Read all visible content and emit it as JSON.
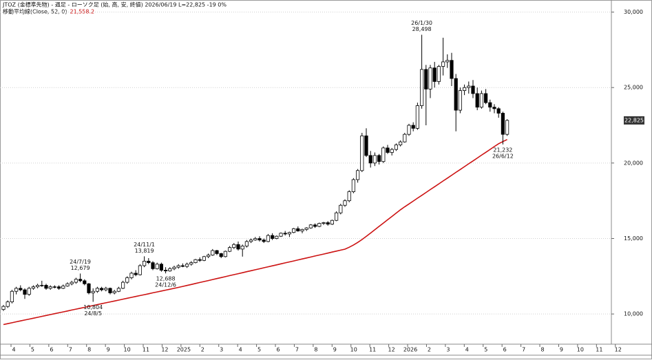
{
  "chart_data": {
    "type": "candlestick",
    "title": "JTOZ (金標準先物) - 週足 - ローソク足 (始, 高, 安, 終値)  2026/06/19 L=22,825 -19  0%",
    "ylim": [
      8000,
      30800
    ],
    "yticks": [
      {
        "value": 10000,
        "label": "10,000"
      },
      {
        "value": 15000,
        "label": "15,000"
      },
      {
        "value": 20000,
        "label": "20,000"
      },
      {
        "value": 25000,
        "label": "25,000"
      },
      {
        "value": 30000,
        "label": "30,000"
      }
    ],
    "grid": true,
    "x_axis_labels": [
      "4",
      "5",
      "6",
      "7",
      "8",
      "9",
      "10",
      "11",
      "12",
      "2025",
      "2",
      "3",
      "4",
      "5",
      "6",
      "7",
      "8",
      "9",
      "10",
      "11",
      "12",
      "2026",
      "2",
      "3",
      "4",
      "5",
      "6",
      "7",
      "8",
      "9",
      "10",
      "11",
      "12"
    ],
    "up_color": "#ffffff",
    "down_color": "#000000",
    "open": [
      10300,
      10500,
      10800,
      11500,
      11700,
      11600,
      11300,
      11700,
      11800,
      11900,
      11900,
      11700,
      11800,
      11800,
      11700,
      11850,
      12000,
      12100,
      12300,
      12200,
      12000,
      11400,
      11500,
      11700,
      11600,
      11700,
      11400,
      11500,
      11700,
      12100,
      12400,
      12700,
      12600,
      13200,
      13500,
      13400,
      13000,
      13300,
      12900,
      12850,
      13000,
      13100,
      13200,
      13150,
      13300,
      13400,
      13600,
      13550,
      13800,
      13900,
      14200,
      14000,
      13800,
      14150,
      14400,
      14600,
      14300,
      14500,
      14800,
      14900,
      15000,
      14900,
      14800,
      15200,
      15000,
      15150,
      15350,
      15300,
      15400,
      15650,
      15500,
      15600,
      15700,
      15900,
      15800,
      16000,
      16050,
      15950,
      16200,
      16700,
      17200,
      17500,
      18100,
      18900,
      19500,
      21800,
      20500,
      20000,
      20500,
      20100,
      21000,
      20700,
      20900,
      21200,
      21400,
      21900,
      22500,
      22300,
      23800,
      26200,
      24900,
      26300,
      25400,
      26400,
      26700,
      26800,
      25600,
      23500,
      24800,
      25000,
      25100,
      24600,
      23700,
      24600,
      24000,
      23700,
      23600,
      23300,
      21900
    ],
    "high": [
      10600,
      10900,
      11600,
      11800,
      11900,
      11700,
      11800,
      11900,
      12000,
      12200,
      12000,
      11900,
      11900,
      11900,
      11950,
      12100,
      12200,
      12400,
      12679,
      12300,
      12050,
      11700,
      11800,
      11800,
      11800,
      11750,
      11600,
      11800,
      12200,
      12500,
      12800,
      12900,
      13300,
      13819,
      13700,
      13500,
      13400,
      13400,
      13100,
      13100,
      13200,
      13300,
      13350,
      13400,
      13500,
      13650,
      13750,
      13850,
      14000,
      14300,
      14250,
      14050,
      14200,
      14500,
      14700,
      14800,
      14600,
      14900,
      15000,
      15100,
      15150,
      15000,
      15300,
      15350,
      15200,
      15400,
      15500,
      15450,
      15700,
      15800,
      15650,
      15750,
      15950,
      16000,
      16050,
      16100,
      16150,
      16250,
      16800,
      17300,
      17600,
      18200,
      19000,
      19600,
      22000,
      22300,
      20800,
      20700,
      20600,
      21100,
      21200,
      21000,
      21300,
      21500,
      22000,
      22600,
      22700,
      24000,
      28498,
      26500,
      26500,
      26700,
      26500,
      28300,
      27200,
      27300,
      25900,
      25000,
      25200,
      25400,
      25500,
      25000,
      24800,
      24900,
      24200,
      23900,
      23700,
      23400,
      22900
    ],
    "low": [
      10200,
      10400,
      10700,
      11300,
      11500,
      11000,
      11200,
      11600,
      11700,
      11800,
      11600,
      11600,
      11700,
      11600,
      11650,
      11800,
      11900,
      12000,
      12100,
      11900,
      11300,
      10804,
      11400,
      11500,
      11500,
      11300,
      11300,
      11450,
      11650,
      12000,
      12300,
      12500,
      12550,
      13100,
      13300,
      12900,
      12950,
      12800,
      12688,
      12800,
      12900,
      13000,
      13100,
      13050,
      13200,
      13350,
      13450,
      13500,
      13700,
      13850,
      13900,
      13700,
      13750,
      14100,
      14300,
      14200,
      13800,
      14400,
      14700,
      14850,
      14800,
      14700,
      14750,
      14900,
      14950,
      15100,
      15200,
      15100,
      15350,
      15450,
      15350,
      15500,
      15650,
      15700,
      15750,
      15900,
      15850,
      15900,
      16150,
      16600,
      17100,
      17400,
      18000,
      18700,
      19400,
      20400,
      19700,
      19800,
      19900,
      20000,
      20600,
      20500,
      20800,
      21100,
      21350,
      21800,
      22100,
      22200,
      23600,
      22500,
      24300,
      25000,
      25200,
      25800,
      26300,
      25100,
      22100,
      23300,
      24500,
      24600,
      24300,
      23500,
      23600,
      23900,
      23400,
      23300,
      23000,
      21232,
      21800
    ],
    "close": [
      10500,
      10800,
      11500,
      11700,
      11600,
      11300,
      11700,
      11800,
      11900,
      11900,
      11700,
      11800,
      11800,
      11700,
      11850,
      12000,
      12100,
      12300,
      12200,
      12000,
      11400,
      11500,
      11700,
      11600,
      11700,
      11400,
      11500,
      11700,
      12100,
      12400,
      12700,
      12600,
      13200,
      13500,
      13400,
      13000,
      13300,
      12900,
      12850,
      13000,
      13100,
      13200,
      13150,
      13300,
      13400,
      13600,
      13550,
      13800,
      13900,
      14200,
      14000,
      13800,
      14150,
      14400,
      14600,
      14300,
      14500,
      14800,
      14900,
      15000,
      14900,
      14800,
      15200,
      15000,
      15150,
      15350,
      15300,
      15400,
      15650,
      15500,
      15600,
      15700,
      15900,
      15800,
      16000,
      16050,
      15950,
      16200,
      16700,
      17200,
      17500,
      18100,
      18900,
      19500,
      21800,
      20500,
      20000,
      20500,
      20100,
      21000,
      20700,
      20900,
      21200,
      21400,
      21900,
      22500,
      22300,
      23800,
      26200,
      24900,
      26300,
      25400,
      26400,
      26700,
      26800,
      25600,
      23500,
      24800,
      25000,
      25100,
      24600,
      23700,
      24600,
      24000,
      23700,
      23600,
      23300,
      21900,
      22825
    ],
    "last_label": "22,825",
    "ma": {
      "label": "移動平均線(Close, 52, 0)",
      "last_label": "21,558.2",
      "color": "#cc1111",
      "values": [
        9300,
        9360,
        9420,
        9480,
        9540,
        9600,
        9660,
        9720,
        9780,
        9840,
        9900,
        9960,
        10020,
        10080,
        10140,
        10200,
        10260,
        10320,
        10380,
        10440,
        10500,
        10560,
        10620,
        10680,
        10740,
        10800,
        10860,
        10920,
        10980,
        11040,
        11100,
        11160,
        11220,
        11280,
        11340,
        11400,
        11460,
        11520,
        11580,
        11640,
        11700,
        11760,
        11825,
        11890,
        11955,
        12020,
        12085,
        12150,
        12215,
        12280,
        12345,
        12410,
        12475,
        12540,
        12605,
        12670,
        12735,
        12800,
        12865,
        12930,
        12995,
        13060,
        13125,
        13190,
        13255,
        13320,
        13385,
        13450,
        13515,
        13580,
        13645,
        13710,
        13775,
        13840,
        13905,
        13970,
        14035,
        14100,
        14165,
        14230,
        14295,
        14420,
        14570,
        14740,
        14930,
        15140,
        15360,
        15580,
        15800,
        16020,
        16240,
        16460,
        16680,
        16900,
        17100,
        17290,
        17480,
        17670,
        17860,
        18050,
        18240,
        18430,
        18620,
        18810,
        19000,
        19190,
        19380,
        19570,
        19760,
        19950,
        20140,
        20330,
        20520,
        20710,
        20900,
        21090,
        21280,
        21420,
        21558.2
      ]
    },
    "annotations": [
      {
        "date": "24/7/19",
        "value": 12679,
        "value_label": "12,679",
        "position": "above"
      },
      {
        "date": "24/8/5",
        "value": 10804,
        "value_label": "10,804",
        "position": "below"
      },
      {
        "date": "24/11/1",
        "value": 13819,
        "value_label": "13,819",
        "position": "above"
      },
      {
        "date": "24/12/6",
        "value": 12688,
        "value_label": "12,688",
        "position": "below"
      },
      {
        "date": "26/1/30",
        "value": 28498,
        "value_label": "28,498",
        "position": "above"
      },
      {
        "date": "26/6/12",
        "value": 21232,
        "value_label": "21,232",
        "position": "below"
      }
    ]
  }
}
